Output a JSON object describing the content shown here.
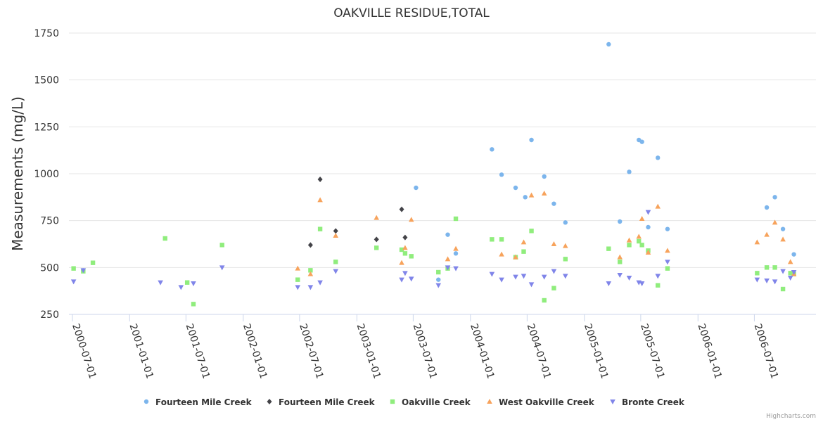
{
  "chart_data": {
    "type": "scatter",
    "title": "OAKVILLE RESIDUE,TOTAL",
    "xlabel": "",
    "ylabel": "Measurements (mg/L)",
    "ylim": [
      250,
      1750
    ],
    "yticks": [
      250,
      500,
      750,
      1000,
      1250,
      1500,
      1750
    ],
    "xlim": [
      "2000-06-20",
      "2007-01-15"
    ],
    "xticks": [
      "2000-07-01",
      "2001-01-01",
      "2001-07-01",
      "2002-01-01",
      "2002-07-01",
      "2003-01-01",
      "2003-07-01",
      "2004-01-01",
      "2004-07-01",
      "2005-01-01",
      "2005-07-01",
      "2006-01-01",
      "2006-07-01"
    ],
    "grid": true,
    "legend_position": "bottom-center",
    "credits": "Highcharts.com",
    "series": [
      {
        "name": "Fourteen Mile Creek",
        "color": "#7cb5ec",
        "marker": "circle",
        "points": [
          [
            "2000-08-05",
            485
          ],
          [
            "2003-07-10",
            925
          ],
          [
            "2003-09-20",
            435
          ],
          [
            "2003-10-20",
            675
          ],
          [
            "2003-11-15",
            575
          ],
          [
            "2004-03-10",
            1130
          ],
          [
            "2004-04-10",
            995
          ],
          [
            "2004-05-25",
            925
          ],
          [
            "2004-06-25",
            875
          ],
          [
            "2004-07-15",
            1180
          ],
          [
            "2004-08-25",
            985
          ],
          [
            "2004-09-25",
            840
          ],
          [
            "2004-11-01",
            740
          ],
          [
            "2005-03-20",
            1690
          ],
          [
            "2005-04-25",
            745
          ],
          [
            "2005-05-25",
            1010
          ],
          [
            "2005-06-25",
            1180
          ],
          [
            "2005-07-05",
            1170
          ],
          [
            "2005-07-25",
            715
          ],
          [
            "2005-08-25",
            1085
          ],
          [
            "2005-09-25",
            705
          ],
          [
            "2006-08-10",
            820
          ],
          [
            "2006-09-05",
            875
          ],
          [
            "2006-10-01",
            705
          ],
          [
            "2006-11-05",
            570
          ]
        ]
      },
      {
        "name": "Fourteen Mile Creek",
        "color": "#434348",
        "marker": "diamond",
        "points": [
          [
            "2002-08-05",
            620
          ],
          [
            "2002-09-05",
            970
          ],
          [
            "2002-10-25",
            695
          ],
          [
            "2003-03-05",
            650
          ],
          [
            "2003-05-25",
            810
          ],
          [
            "2003-06-05",
            660
          ]
        ]
      },
      {
        "name": "Oakville Creek",
        "color": "#90ed7d",
        "marker": "square",
        "points": [
          [
            "2000-07-05",
            495
          ],
          [
            "2000-08-05",
            480
          ],
          [
            "2000-09-05",
            525
          ],
          [
            "2001-04-25",
            655
          ],
          [
            "2001-07-05",
            420
          ],
          [
            "2001-07-25",
            305
          ],
          [
            "2001-10-25",
            620
          ],
          [
            "2002-06-25",
            435
          ],
          [
            "2002-08-05",
            485
          ],
          [
            "2002-09-05",
            705
          ],
          [
            "2002-10-25",
            530
          ],
          [
            "2003-03-05",
            605
          ],
          [
            "2003-05-25",
            595
          ],
          [
            "2003-06-05",
            575
          ],
          [
            "2003-06-25",
            560
          ],
          [
            "2003-09-20",
            475
          ],
          [
            "2003-10-20",
            495
          ],
          [
            "2003-11-15",
            760
          ],
          [
            "2004-03-10",
            650
          ],
          [
            "2004-04-10",
            650
          ],
          [
            "2004-05-25",
            555
          ],
          [
            "2004-06-20",
            585
          ],
          [
            "2004-07-15",
            695
          ],
          [
            "2004-08-25",
            325
          ],
          [
            "2004-09-25",
            390
          ],
          [
            "2004-11-01",
            545
          ],
          [
            "2005-03-20",
            600
          ],
          [
            "2005-04-25",
            530
          ],
          [
            "2005-05-25",
            620
          ],
          [
            "2005-06-25",
            640
          ],
          [
            "2005-07-05",
            620
          ],
          [
            "2005-07-25",
            590
          ],
          [
            "2005-08-25",
            405
          ],
          [
            "2005-09-25",
            495
          ],
          [
            "2006-07-10",
            470
          ],
          [
            "2006-08-10",
            500
          ],
          [
            "2006-09-05",
            500
          ],
          [
            "2006-10-01",
            385
          ],
          [
            "2006-10-25",
            470
          ],
          [
            "2006-11-05",
            465
          ]
        ]
      },
      {
        "name": "West Oakville Creek",
        "color": "#f7a35c",
        "marker": "triangle",
        "points": [
          [
            "2002-06-25",
            495
          ],
          [
            "2002-08-05",
            465
          ],
          [
            "2002-09-05",
            860
          ],
          [
            "2002-10-25",
            670
          ],
          [
            "2003-03-05",
            765
          ],
          [
            "2003-05-25",
            525
          ],
          [
            "2003-06-05",
            605
          ],
          [
            "2003-06-25",
            755
          ],
          [
            "2003-10-20",
            545
          ],
          [
            "2003-11-15",
            600
          ],
          [
            "2004-04-10",
            570
          ],
          [
            "2004-05-25",
            555
          ],
          [
            "2004-06-20",
            635
          ],
          [
            "2004-07-15",
            885
          ],
          [
            "2004-08-25",
            895
          ],
          [
            "2004-09-25",
            625
          ],
          [
            "2004-11-01",
            615
          ],
          [
            "2005-04-25",
            555
          ],
          [
            "2005-05-25",
            645
          ],
          [
            "2005-06-25",
            665
          ],
          [
            "2005-07-05",
            760
          ],
          [
            "2005-07-25",
            580
          ],
          [
            "2005-08-25",
            825
          ],
          [
            "2005-09-25",
            590
          ],
          [
            "2006-07-10",
            635
          ],
          [
            "2006-08-10",
            675
          ],
          [
            "2006-09-05",
            740
          ],
          [
            "2006-10-01",
            650
          ],
          [
            "2006-10-25",
            530
          ],
          [
            "2006-11-05",
            465
          ]
        ]
      },
      {
        "name": "Bronte Creek",
        "color": "#8085e9",
        "marker": "triangle-down",
        "points": [
          [
            "2000-07-05",
            425
          ],
          [
            "2000-08-05",
            485
          ],
          [
            "2001-04-10",
            420
          ],
          [
            "2001-06-15",
            395
          ],
          [
            "2001-07-25",
            415
          ],
          [
            "2001-10-25",
            500
          ],
          [
            "2002-06-25",
            395
          ],
          [
            "2002-08-05",
            395
          ],
          [
            "2002-09-05",
            420
          ],
          [
            "2002-10-25",
            480
          ],
          [
            "2003-05-25",
            435
          ],
          [
            "2003-06-05",
            470
          ],
          [
            "2003-06-25",
            440
          ],
          [
            "2003-09-20",
            405
          ],
          [
            "2003-10-20",
            500
          ],
          [
            "2003-11-15",
            495
          ],
          [
            "2004-03-10",
            465
          ],
          [
            "2004-04-10",
            435
          ],
          [
            "2004-05-25",
            450
          ],
          [
            "2004-06-20",
            455
          ],
          [
            "2004-07-15",
            410
          ],
          [
            "2004-08-25",
            450
          ],
          [
            "2004-09-25",
            480
          ],
          [
            "2004-11-01",
            455
          ],
          [
            "2005-03-20",
            415
          ],
          [
            "2005-04-25",
            460
          ],
          [
            "2005-05-25",
            445
          ],
          [
            "2005-06-25",
            420
          ],
          [
            "2005-07-05",
            415
          ],
          [
            "2005-07-25",
            795
          ],
          [
            "2005-08-25",
            455
          ],
          [
            "2005-09-25",
            530
          ],
          [
            "2006-07-10",
            435
          ],
          [
            "2006-08-10",
            430
          ],
          [
            "2006-09-05",
            425
          ],
          [
            "2006-10-01",
            480
          ],
          [
            "2006-10-25",
            445
          ],
          [
            "2006-11-05",
            475
          ]
        ]
      }
    ]
  }
}
